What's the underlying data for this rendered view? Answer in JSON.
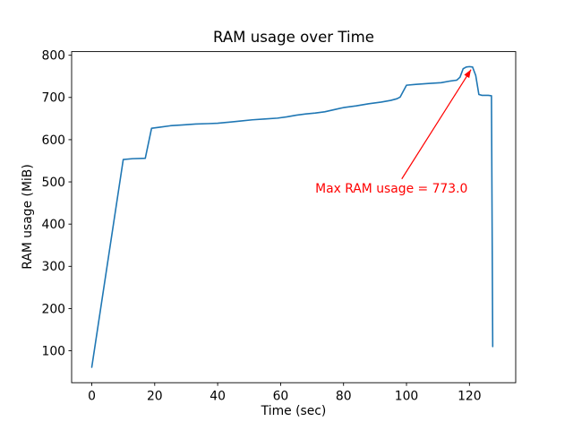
{
  "chart_data": {
    "type": "line",
    "title": "RAM usage over Time",
    "xlabel": "Time (sec)",
    "ylabel": "RAM usage (MiB)",
    "xlim": [
      -6.4,
      134.7
    ],
    "ylim": [
      24.4,
      808.6
    ],
    "xticks": [
      0,
      20,
      40,
      60,
      80,
      100,
      120
    ],
    "yticks": [
      100,
      200,
      300,
      400,
      500,
      600,
      700,
      800
    ],
    "grid": false,
    "legend": false,
    "line_color": "#1f77b4",
    "series": [
      {
        "name": "RAM usage",
        "color": "#1f77b4",
        "points": [
          [
            0,
            61
          ],
          [
            10,
            553
          ],
          [
            13,
            555
          ],
          [
            17,
            556
          ],
          [
            19,
            627
          ],
          [
            22,
            630
          ],
          [
            25,
            633
          ],
          [
            29,
            635
          ],
          [
            33,
            637
          ],
          [
            37,
            638
          ],
          [
            40,
            639
          ],
          [
            43,
            641
          ],
          [
            47,
            644
          ],
          [
            51,
            647
          ],
          [
            55,
            649
          ],
          [
            59,
            651
          ],
          [
            62,
            654
          ],
          [
            65,
            658
          ],
          [
            68,
            661
          ],
          [
            71,
            663
          ],
          [
            74,
            666
          ],
          [
            77,
            671
          ],
          [
            80,
            676
          ],
          [
            84,
            680
          ],
          [
            88,
            685
          ],
          [
            92,
            689
          ],
          [
            95,
            693
          ],
          [
            97,
            697
          ],
          [
            98,
            701
          ],
          [
            100,
            729
          ],
          [
            103,
            731
          ],
          [
            107,
            733
          ],
          [
            111,
            735
          ],
          [
            114,
            739
          ],
          [
            116,
            741
          ],
          [
            117,
            748
          ],
          [
            118,
            768
          ],
          [
            119,
            772
          ],
          [
            120,
            773
          ],
          [
            121,
            772
          ],
          [
            122,
            752
          ],
          [
            123,
            707
          ],
          [
            124,
            705
          ],
          [
            126,
            705
          ],
          [
            127,
            704
          ],
          [
            127.4,
            110
          ]
        ]
      }
    ],
    "annotation": {
      "text": "Max RAM usage = 773.0",
      "value": 773.0,
      "color": "#ff0000",
      "xy": [
        120.5,
        766
      ],
      "text_xy": [
        71,
        500
      ],
      "arrow_tail_xy": [
        98.5,
        507
      ]
    }
  }
}
